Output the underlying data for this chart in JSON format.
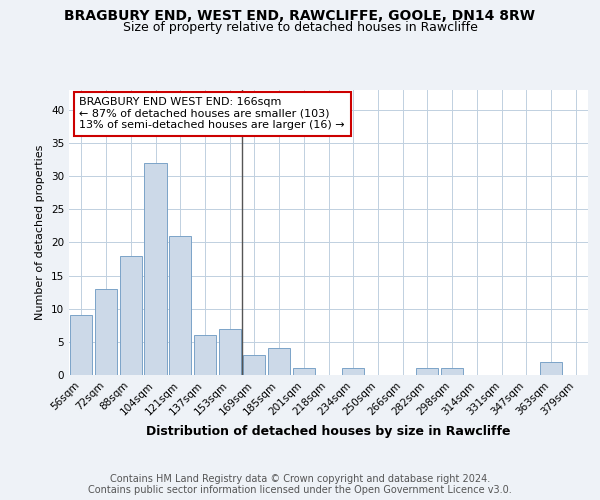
{
  "title1": "BRAGBURY END, WEST END, RAWCLIFFE, GOOLE, DN14 8RW",
  "title2": "Size of property relative to detached houses in Rawcliffe",
  "xlabel": "Distribution of detached houses by size in Rawcliffe",
  "ylabel": "Number of detached properties",
  "categories": [
    "56sqm",
    "72sqm",
    "88sqm",
    "104sqm",
    "121sqm",
    "137sqm",
    "153sqm",
    "169sqm",
    "185sqm",
    "201sqm",
    "218sqm",
    "234sqm",
    "250sqm",
    "266sqm",
    "282sqm",
    "298sqm",
    "314sqm",
    "331sqm",
    "347sqm",
    "363sqm",
    "379sqm"
  ],
  "values": [
    9,
    13,
    18,
    32,
    21,
    6,
    7,
    3,
    4,
    1,
    0,
    1,
    0,
    0,
    1,
    1,
    0,
    0,
    0,
    2,
    0
  ],
  "bar_color": "#ccd9e8",
  "bar_edge_color": "#7ba3c8",
  "highlight_index": 7,
  "highlight_line_color": "#555555",
  "annotation_line1": "BRAGBURY END WEST END: 166sqm",
  "annotation_line2": "← 87% of detached houses are smaller (103)",
  "annotation_line3": "13% of semi-detached houses are larger (16) →",
  "annotation_box_color": "#ffffff",
  "annotation_box_edge": "#cc0000",
  "ylim": [
    0,
    43
  ],
  "yticks": [
    0,
    5,
    10,
    15,
    20,
    25,
    30,
    35,
    40
  ],
  "footer1": "Contains HM Land Registry data © Crown copyright and database right 2024.",
  "footer2": "Contains public sector information licensed under the Open Government Licence v3.0.",
  "background_color": "#eef2f7",
  "plot_bg_color": "#ffffff",
  "grid_color": "#c0d0e0",
  "title1_fontsize": 10,
  "title2_fontsize": 9,
  "xlabel_fontsize": 9,
  "ylabel_fontsize": 8,
  "tick_fontsize": 7.5,
  "annotation_fontsize": 8,
  "footer_fontsize": 7
}
